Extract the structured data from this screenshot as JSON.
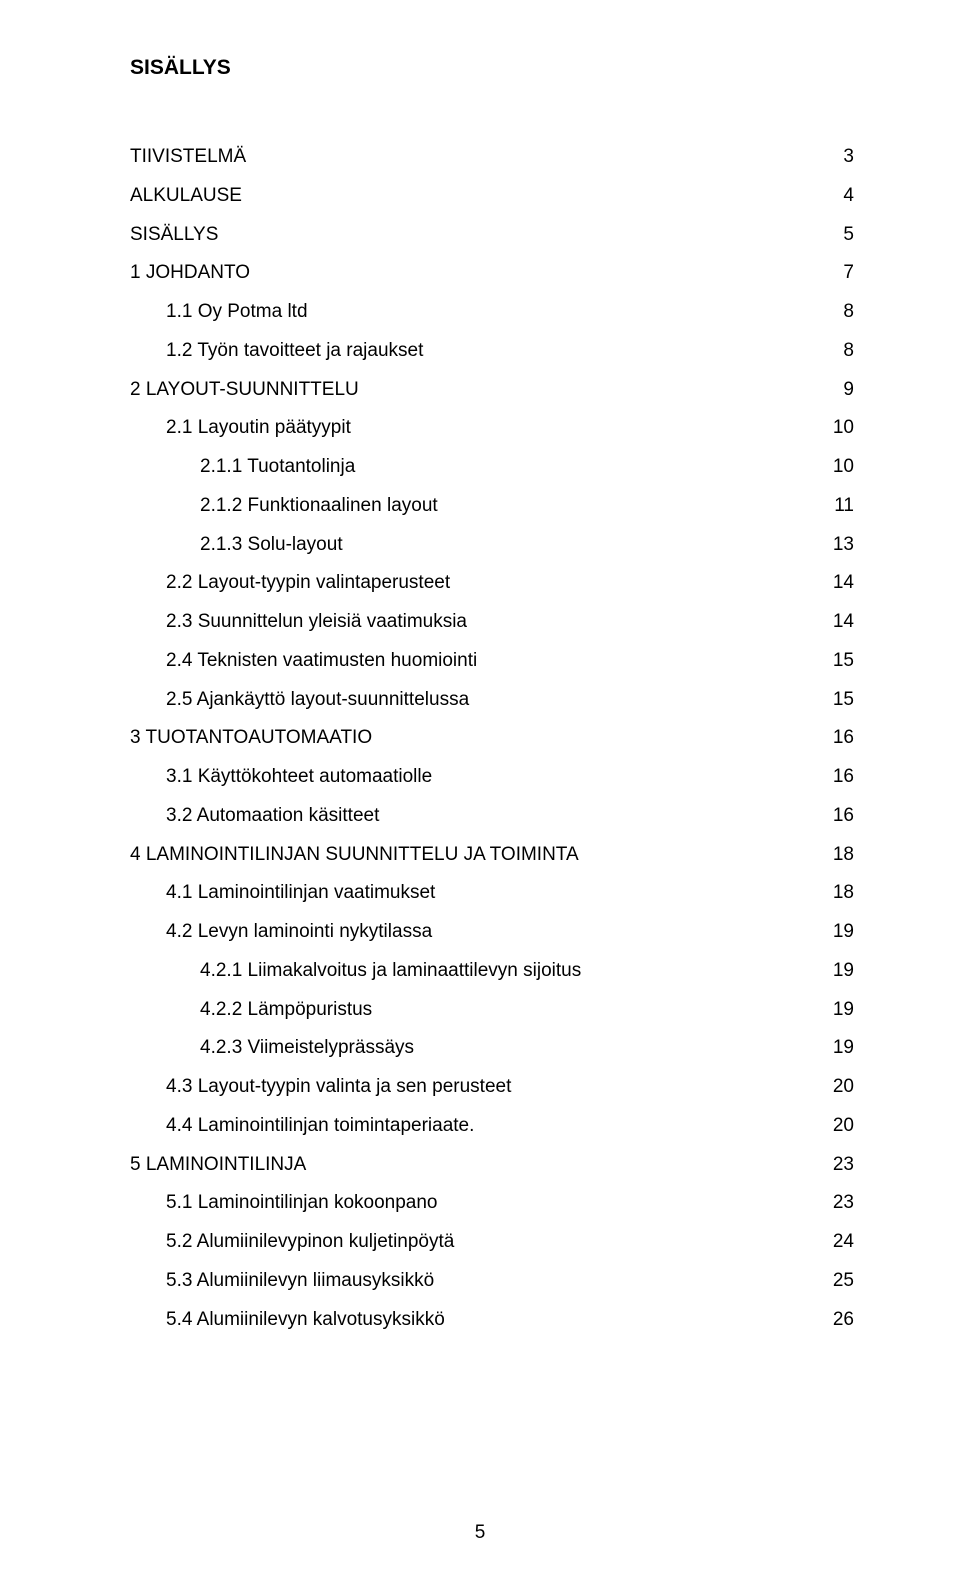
{
  "title": "SISÄLLYS",
  "page_number": "5",
  "entries": [
    {
      "label": "TIIVISTELMÄ",
      "page": "3",
      "indent": 0
    },
    {
      "label": "ALKULAUSE",
      "page": "4",
      "indent": 0
    },
    {
      "label": "SISÄLLYS",
      "page": "5",
      "indent": 0
    },
    {
      "label": "1 JOHDANTO",
      "page": "7",
      "indent": 0
    },
    {
      "label": "1.1 Oy Potma ltd",
      "page": "8",
      "indent": 1
    },
    {
      "label": "1.2 Työn tavoitteet ja rajaukset",
      "page": "8",
      "indent": 1
    },
    {
      "label": "2 LAYOUT-SUUNNITTELU",
      "page": "9",
      "indent": 0
    },
    {
      "label": "2.1 Layoutin päätyypit",
      "page": "10",
      "indent": 1
    },
    {
      "label": "2.1.1 Tuotantolinja",
      "page": "10",
      "indent": 2
    },
    {
      "label": "2.1.2 Funktionaalinen layout",
      "page": "11",
      "indent": 2
    },
    {
      "label": "2.1.3 Solu-layout",
      "page": "13",
      "indent": 2
    },
    {
      "label": "2.2 Layout-tyypin valintaperusteet",
      "page": "14",
      "indent": 1
    },
    {
      "label": "2.3 Suunnittelun yleisiä vaatimuksia",
      "page": "14",
      "indent": 1
    },
    {
      "label": "2.4 Teknisten vaatimusten huomiointi",
      "page": "15",
      "indent": 1
    },
    {
      "label": "2.5 Ajankäyttö layout-suunnittelussa",
      "page": "15",
      "indent": 1
    },
    {
      "label": "3 TUOTANTOAUTOMAATIO",
      "page": "16",
      "indent": 0
    },
    {
      "label": "3.1 Käyttökohteet automaatiolle",
      "page": "16",
      "indent": 1
    },
    {
      "label": "3.2 Automaation käsitteet",
      "page": "16",
      "indent": 1
    },
    {
      "label": "4 LAMINOINTILINJAN SUUNNITTELU JA TOIMINTA",
      "page": "18",
      "indent": 0
    },
    {
      "label": "4.1 Laminointilinjan vaatimukset",
      "page": "18",
      "indent": 1
    },
    {
      "label": "4.2 Levyn laminointi nykytilassa",
      "page": "19",
      "indent": 1
    },
    {
      "label": "4.2.1 Liimakalvoitus ja laminaattilevyn sijoitus",
      "page": "19",
      "indent": 2
    },
    {
      "label": "4.2.2 Lämpöpuristus",
      "page": "19",
      "indent": 2
    },
    {
      "label": "4.2.3 Viimeistelyprässäys",
      "page": "19",
      "indent": 2
    },
    {
      "label": "4.3 Layout-tyypin valinta ja sen perusteet",
      "page": "20",
      "indent": 1
    },
    {
      "label": "4.4 Laminointilinjan toimintaperiaate.",
      "page": "20",
      "indent": 1
    },
    {
      "label": "5 LAMINOINTILINJA",
      "page": "23",
      "indent": 0
    },
    {
      "label": "5.1 Laminointilinjan kokoonpano",
      "page": "23",
      "indent": 1
    },
    {
      "label": "5.2 Alumiinilevypinon kuljetinpöytä",
      "page": "24",
      "indent": 1
    },
    {
      "label": "5.3 Alumiinilevyn liimausyksikkö",
      "page": "25",
      "indent": 1
    },
    {
      "label": "5.4 Alumiinilevyn kalvotusyksikkö",
      "page": "26",
      "indent": 1
    }
  ]
}
